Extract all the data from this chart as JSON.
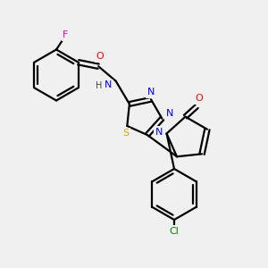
{
  "background_color": "#f0f0f0",
  "atom_colors": {
    "C": "#000000",
    "N": "#0000ff",
    "O": "#ff0000",
    "S": "#ccaa00",
    "F": "#ff00aa",
    "Cl": "#008800",
    "H": "#444444"
  },
  "bond_color": "#000000",
  "bond_lw": 1.6,
  "figsize": [
    3.0,
    3.0
  ],
  "dpi": 100,
  "xlim": [
    0,
    10
  ],
  "ylim": [
    0,
    10
  ]
}
